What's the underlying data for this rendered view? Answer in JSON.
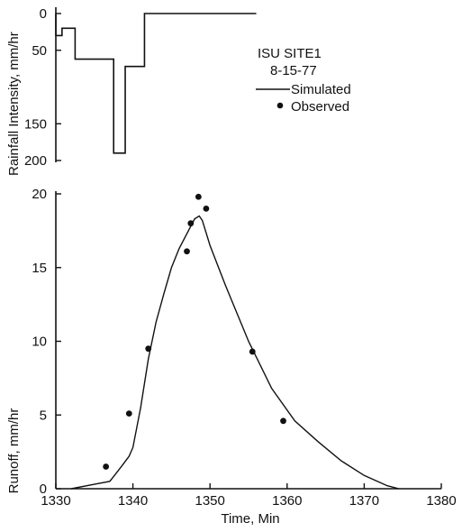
{
  "chart_data": {
    "type": "line",
    "legend": {
      "site": "ISU SITE1",
      "date": "8-15-77",
      "simulated_label": "Simulated",
      "observed_label": "Observed",
      "placement": "top-right"
    },
    "xlabel": "Time, Min",
    "xlim": [
      1330,
      1380
    ],
    "xticks": [
      "1330",
      "1340",
      "1350",
      "1360",
      "1370",
      "1380"
    ],
    "rainfall_panel": {
      "ylabel": "Rainfall Intensity, mm/hr",
      "ylim": [
        0,
        200
      ],
      "y_inverted": true,
      "yticks": [
        "0",
        "50",
        "150",
        "200"
      ],
      "hyetograph": [
        {
          "x_start": 1330,
          "x_end": 1330.8,
          "value": 30
        },
        {
          "x_start": 1330.8,
          "x_end": 1332.5,
          "value": 20
        },
        {
          "x_start": 1332.5,
          "x_end": 1337.5,
          "value": 62
        },
        {
          "x_start": 1337.5,
          "x_end": 1339.0,
          "value": 190
        },
        {
          "x_start": 1339.0,
          "x_end": 1341.5,
          "value": 72
        },
        {
          "x_start": 1341.5,
          "x_end": 1356.0,
          "value": 0
        }
      ]
    },
    "runoff_panel": {
      "ylabel": "Runoff, mm/hr",
      "ylim": [
        0,
        20
      ],
      "yticks": [
        "0",
        "5",
        "10",
        "15",
        "20"
      ],
      "series": [
        {
          "name": "Simulated",
          "style": "line",
          "x": [
            1332,
            1335,
            1337,
            1338.5,
            1339.5,
            1340,
            1341,
            1342,
            1343,
            1344,
            1345,
            1346,
            1347,
            1348,
            1348.6,
            1349,
            1350,
            1352,
            1355,
            1358,
            1361,
            1364,
            1367,
            1370,
            1373,
            1374.5
          ],
          "y": [
            0,
            0.3,
            0.5,
            1.5,
            2.2,
            2.8,
            5.5,
            8.8,
            11.3,
            13.2,
            15.0,
            16.3,
            17.3,
            18.3,
            18.5,
            18.2,
            16.5,
            13.8,
            10.0,
            6.8,
            4.6,
            3.2,
            1.9,
            0.9,
            0.2,
            0
          ]
        },
        {
          "name": "Observed",
          "style": "points",
          "x": [
            1336.5,
            1339.5,
            1342.0,
            1347.0,
            1347.5,
            1348.5,
            1349.5,
            1355.5,
            1359.5
          ],
          "y": [
            1.5,
            5.1,
            9.5,
            16.1,
            18.0,
            19.8,
            19.0,
            9.3,
            4.6
          ]
        }
      ]
    }
  }
}
